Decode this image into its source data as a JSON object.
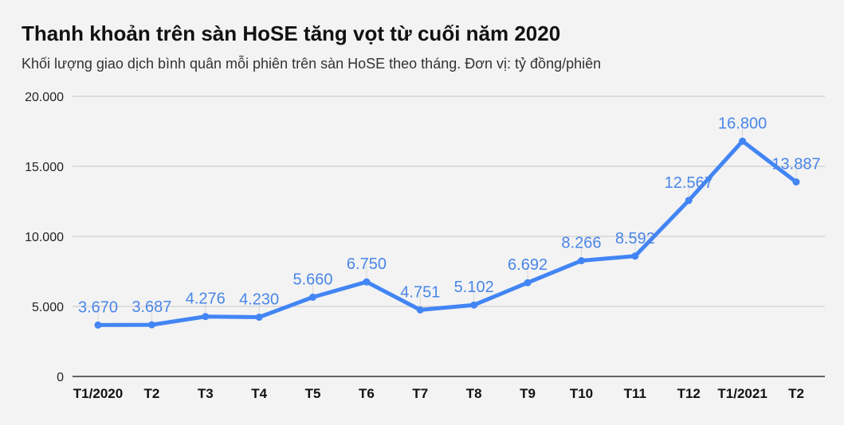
{
  "chart_data": {
    "type": "line",
    "title": "Thanh khoản trên sàn HoSE tăng vọt từ cuối năm 2020",
    "subtitle": "Khối lượng giao dịch bình quân mỗi phiên trên sàn HoSE theo tháng. Đơn vị: tỷ đồng/phiên",
    "categories": [
      "T1/2020",
      "T2",
      "T3",
      "T4",
      "T5",
      "T6",
      "T7",
      "T8",
      "T9",
      "T10",
      "T11",
      "T12",
      "T1/2021",
      "T2"
    ],
    "values": [
      3670,
      3687,
      4276,
      4230,
      5660,
      6750,
      4751,
      5102,
      6692,
      8266,
      8592,
      12567,
      16800,
      13887
    ],
    "data_labels": [
      "3.670",
      "3.687",
      "4.276",
      "4.230",
      "5.660",
      "6.750",
      "4.751",
      "5.102",
      "6.692",
      "8.266",
      "8.592",
      "12.567",
      "16.800",
      "13.887"
    ],
    "y_ticks": [
      0,
      5000,
      10000,
      15000,
      20000
    ],
    "y_tick_labels": [
      "0",
      "5.000",
      "10.000",
      "15.000",
      "20.000"
    ],
    "ylim": [
      0,
      20000
    ],
    "grid": true,
    "line_color": "#4285f4",
    "label_color": "#4a86e8"
  }
}
